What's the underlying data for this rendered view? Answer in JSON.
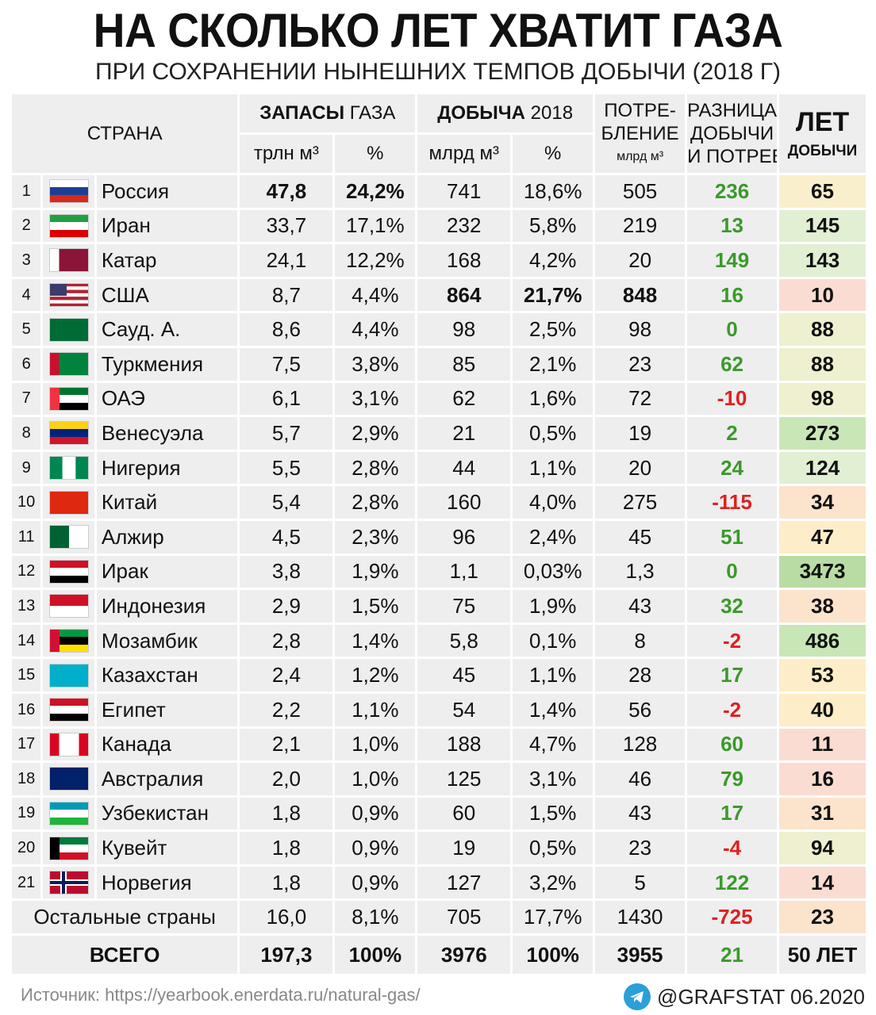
{
  "title": "НА СКОЛЬКО ЛЕТ ХВАТИТ ГАЗА",
  "subtitle": "ПРИ СОХРАНЕНИИ НЫНЕШНИХ ТЕМПОВ ДОБЫЧИ (2018 Г)",
  "header": {
    "country": "СТРАНА",
    "reserves": {
      "title": "ЗАПАСЫ",
      "title_note": "ГАЗА",
      "unit": "трлн м³",
      "share": "%"
    },
    "production": {
      "title": "ДОБЫЧА",
      "title_note": "2018",
      "unit": "млрд м³",
      "share": "%"
    },
    "consumption": [
      "ПОТРЕ-",
      "БЛЕНИЕ",
      "млрд м³"
    ],
    "difference": [
      "РАЗНИЦА",
      "ДОБЫЧИ",
      "И ПОТРЕБ."
    ],
    "years": [
      "ЛЕТ",
      "ДОБЫЧИ"
    ]
  },
  "table": {
    "rows": [
      [
        "1",
        "Россия",
        "47,8",
        "24,2%",
        "741",
        "18,6%",
        "505",
        "236",
        "65"
      ],
      [
        "2",
        "Иран",
        "33,7",
        "17,1%",
        "232",
        "5,8%",
        "219",
        "13",
        "145"
      ],
      [
        "3",
        "Катар",
        "24,1",
        "12,2%",
        "168",
        "4,2%",
        "20",
        "149",
        "143"
      ],
      [
        "4",
        "США",
        "8,7",
        "4,4%",
        "864",
        "21,7%",
        "848",
        "16",
        "10"
      ],
      [
        "5",
        "Сауд. А.",
        "8,6",
        "4,4%",
        "98",
        "2,5%",
        "98",
        "0",
        "88"
      ],
      [
        "6",
        "Туркмения",
        "7,5",
        "3,8%",
        "85",
        "2,1%",
        "23",
        "62",
        "88"
      ],
      [
        "7",
        "ОАЭ",
        "6,1",
        "3,1%",
        "62",
        "1,6%",
        "72",
        "-10",
        "98"
      ],
      [
        "8",
        "Венесуэла",
        "5,7",
        "2,9%",
        "21",
        "0,5%",
        "19",
        "2",
        "273"
      ],
      [
        "9",
        "Нигерия",
        "5,5",
        "2,8%",
        "44",
        "1,1%",
        "20",
        "24",
        "124"
      ],
      [
        "10",
        "Китай",
        "5,4",
        "2,8%",
        "160",
        "4,0%",
        "275",
        "-115",
        "34"
      ],
      [
        "11",
        "Алжир",
        "4,5",
        "2,3%",
        "96",
        "2,4%",
        "45",
        "51",
        "47"
      ],
      [
        "12",
        "Ирак",
        "3,8",
        "1,9%",
        "1,1",
        "0,03%",
        "1,3",
        "0",
        "3473"
      ],
      [
        "13",
        "Индонезия",
        "2,9",
        "1,5%",
        "75",
        "1,9%",
        "43",
        "32",
        "38"
      ],
      [
        "14",
        "Мозамбик",
        "2,8",
        "1,4%",
        "5,8",
        "0,1%",
        "8",
        "-2",
        "486"
      ],
      [
        "15",
        "Казахстан",
        "2,4",
        "1,2%",
        "45",
        "1,1%",
        "28",
        "17",
        "53"
      ],
      [
        "16",
        "Египет",
        "2,2",
        "1,1%",
        "54",
        "1,4%",
        "56",
        "-2",
        "40"
      ],
      [
        "17",
        "Канада",
        "2,1",
        "1,0%",
        "188",
        "4,7%",
        "128",
        "60",
        "11"
      ],
      [
        "18",
        "Австралия",
        "2,0",
        "1,0%",
        "125",
        "3,1%",
        "46",
        "79",
        "16"
      ],
      [
        "19",
        "Узбекистан",
        "1,8",
        "0,9%",
        "60",
        "1,5%",
        "43",
        "17",
        "31"
      ],
      [
        "20",
        "Кувейт",
        "1,8",
        "0,9%",
        "19",
        "0,5%",
        "23",
        "-4",
        "94"
      ],
      [
        "21",
        "Норвегия",
        "1,8",
        "0,9%",
        "127",
        "3,2%",
        "5",
        "122",
        "14"
      ]
    ],
    "others": [
      "Остальные страны",
      "16,0",
      "8,1%",
      "705",
      "17,7%",
      "1430",
      "-725",
      "23"
    ],
    "total": [
      "ВСЕГО",
      "197,3",
      "100%",
      "3976",
      "100%",
      "3955",
      "21",
      "50 ЛЕТ"
    ]
  },
  "footer": {
    "source": "Источник: https://yearbook.enerdata.ru/natural-gas/",
    "credit": "@GRAFSTAT 06.2020"
  }
}
